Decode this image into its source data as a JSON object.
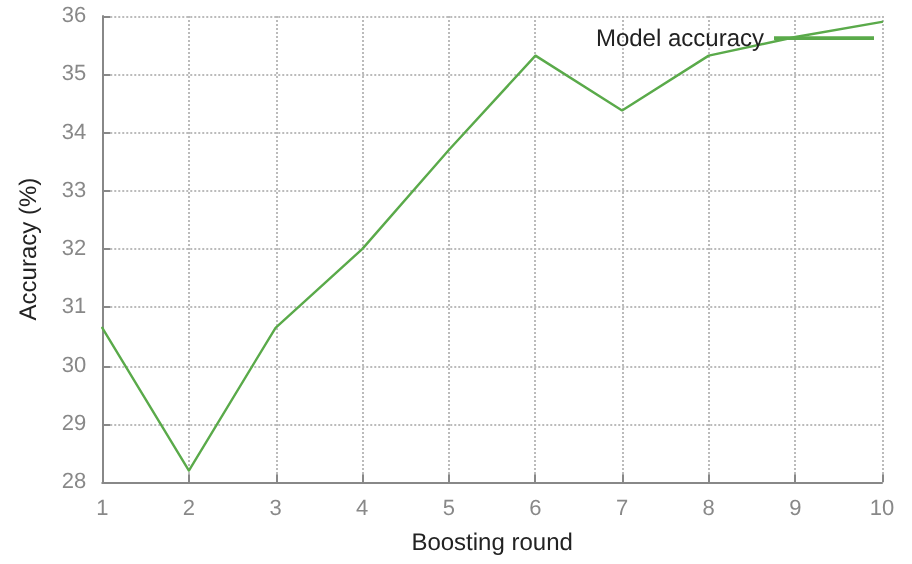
{
  "chart_data": {
    "type": "line",
    "xlabel": "Boosting round",
    "ylabel": "Accuracy (%)",
    "x": [
      1,
      2,
      3,
      4,
      5,
      6,
      7,
      8,
      9,
      10
    ],
    "series": [
      {
        "name": "Model accuracy",
        "color": "#5aaa4a",
        "values": [
          30.65,
          28.2,
          30.65,
          32.0,
          33.7,
          35.32,
          34.38,
          35.32,
          35.64,
          35.9
        ]
      }
    ],
    "xlim": [
      1,
      10
    ],
    "xticks": [
      1,
      2,
      3,
      4,
      5,
      6,
      7,
      8,
      9,
      10
    ],
    "ylim": [
      28,
      36
    ],
    "yticks": [
      28,
      29,
      30,
      31,
      32,
      33,
      34,
      35,
      36
    ],
    "grid": true,
    "legend": "top right",
    "marker": "none",
    "line_style": "solid"
  }
}
